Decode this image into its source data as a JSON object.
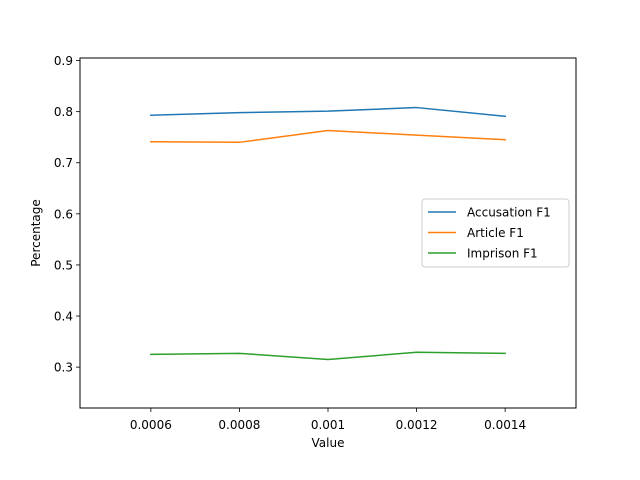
{
  "chart_data": {
    "type": "line",
    "x": [
      0.0006,
      0.0008,
      0.001,
      0.0012,
      0.0014
    ],
    "xticklabels": [
      "0.0006",
      "0.0008",
      "0.001",
      "0.0012",
      "0.0014"
    ],
    "xlim": [
      0.00044,
      0.00156
    ],
    "ylim": [
      0.22,
      0.905
    ],
    "yticks": [
      0.3,
      0.4,
      0.5,
      0.6,
      0.7,
      0.8,
      0.9
    ],
    "yticklabels": [
      "0.3",
      "0.4",
      "0.5",
      "0.6",
      "0.7",
      "0.8",
      "0.9"
    ],
    "xlabel": "Value",
    "ylabel": "Percentage",
    "title": "",
    "grid": false,
    "legend_position": "center-right",
    "series": [
      {
        "name": "Accusation F1",
        "color": "#1f77b4",
        "values": [
          0.793,
          0.798,
          0.801,
          0.808,
          0.791
        ]
      },
      {
        "name": "Article F1",
        "color": "#ff7f0e",
        "values": [
          0.741,
          0.74,
          0.763,
          0.754,
          0.745
        ]
      },
      {
        "name": "Imprison F1",
        "color": "#2ca02c",
        "values": [
          0.325,
          0.327,
          0.315,
          0.329,
          0.327
        ]
      }
    ]
  }
}
